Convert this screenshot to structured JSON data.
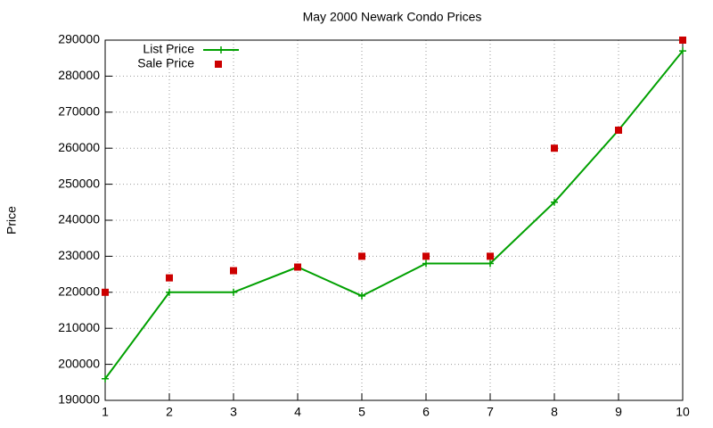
{
  "chart_data": {
    "type": "line",
    "title": "May 2000 Newark Condo Prices",
    "y_label": "Price",
    "x": [
      1,
      2,
      3,
      4,
      5,
      6,
      7,
      8,
      9,
      10
    ],
    "series": [
      {
        "name": "List Price",
        "color": "#00a000",
        "style": "linespoints",
        "values": [
          196000,
          220000,
          220000,
          227000,
          219000,
          228000,
          228000,
          245000,
          265000,
          287000
        ]
      },
      {
        "name": "Sale Price",
        "color": "#cc0000",
        "style": "points",
        "values": [
          220000,
          224000,
          226000,
          227000,
          230000,
          230000,
          230000,
          260000,
          265000,
          290000
        ]
      }
    ],
    "xlim": [
      1,
      10
    ],
    "xticks": [
      1,
      2,
      3,
      4,
      5,
      6,
      7,
      8,
      9,
      10
    ],
    "ylim": [
      190000,
      290000
    ],
    "yticks": [
      190000,
      200000,
      210000,
      220000,
      230000,
      240000,
      250000,
      260000,
      270000,
      280000,
      290000
    ],
    "grid": true,
    "legend": "top-left"
  }
}
